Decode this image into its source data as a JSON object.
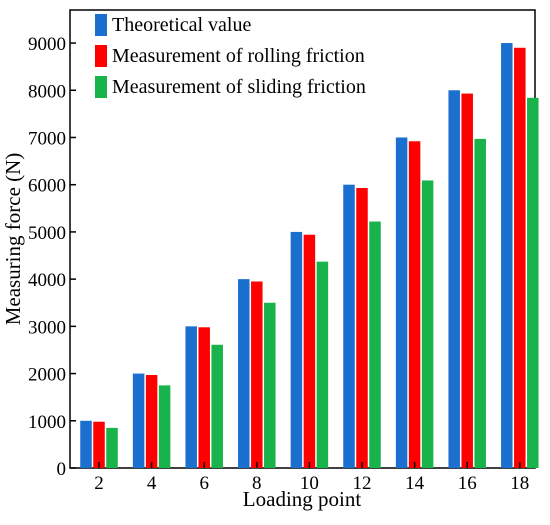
{
  "chart_data": {
    "type": "bar",
    "title": "",
    "xlabel": "Loading point",
    "ylabel": "Measuring force (N)",
    "categories": [
      "2",
      "4",
      "6",
      "8",
      "10",
      "12",
      "14",
      "16",
      "18"
    ],
    "series": [
      {
        "name": "Theoretical value",
        "color": "#1a6fcf",
        "values": [
          1000,
          2000,
          3000,
          4000,
          5000,
          6000,
          7000,
          8000,
          9000
        ]
      },
      {
        "name": "Measurement of rolling friction",
        "color": "#ff0000",
        "values": [
          980,
          1970,
          2980,
          3950,
          4940,
          5930,
          6920,
          7930,
          8900
        ]
      },
      {
        "name": "Measurement of sliding friction",
        "color": "#19b34c",
        "values": [
          850,
          1750,
          2610,
          3500,
          4370,
          5220,
          6090,
          6970,
          7840
        ]
      }
    ],
    "ylim": [
      0,
      9700
    ],
    "yticks": [
      0,
      1000,
      2000,
      3000,
      4000,
      5000,
      6000,
      7000,
      8000,
      9000
    ],
    "yticklabels": [
      "0",
      "1000",
      "2000",
      "3000",
      "4000",
      "5000",
      "6000",
      "7000",
      "8000",
      "9000"
    ],
    "grid": false,
    "legend_position": "top-left"
  }
}
